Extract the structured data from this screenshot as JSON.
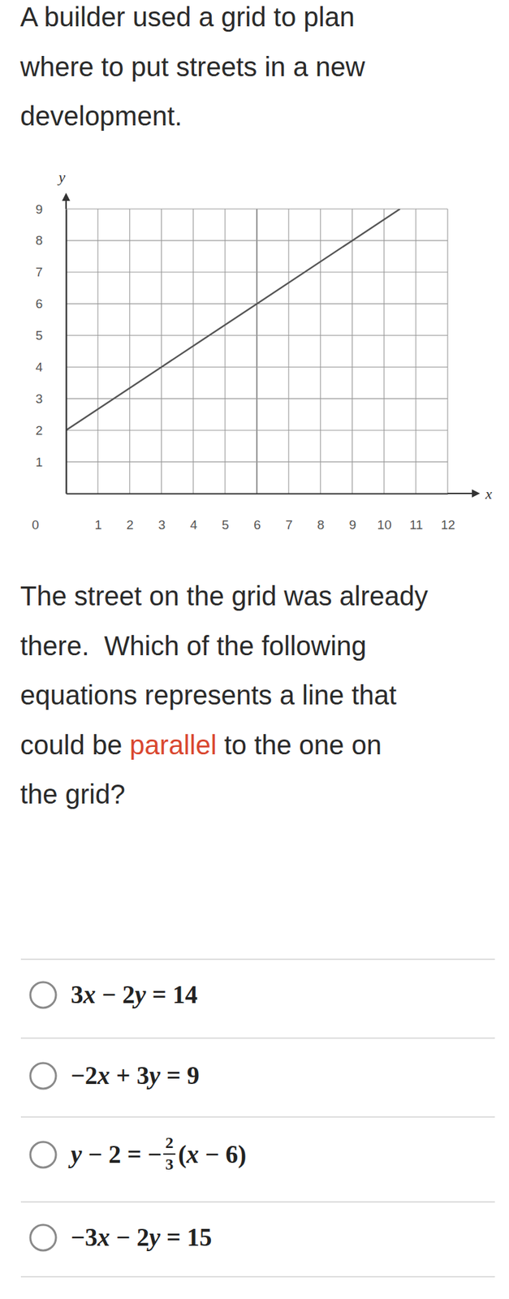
{
  "title_lines": [
    "A builder used a grid to plan",
    "where to put streets in a new",
    "development."
  ],
  "question_lines": [
    [
      {
        "text": "The street on the grid was already"
      }
    ],
    [
      {
        "text": "there.  Which of the following"
      }
    ],
    [
      {
        "text": "equations represents a line that"
      }
    ],
    [
      {
        "text": "could be "
      },
      {
        "text": "parallel",
        "color": "#d9472f"
      },
      {
        "text": " to the one on"
      }
    ],
    [
      {
        "text": "the grid?"
      }
    ]
  ],
  "options": [
    {
      "text": "3x − 2y = 14"
    },
    {
      "text": "−2x + 3y = 9"
    },
    {
      "parts": [
        "y − 2 = −",
        {
          "num": "2",
          "den": "3"
        },
        "(x − 6)"
      ]
    },
    {
      "text": "−3x − 2y = 15"
    }
  ],
  "chart_data": {
    "type": "line",
    "x_label": "x",
    "y_label": "y",
    "x": [
      0,
      3,
      6,
      9,
      10.5
    ],
    "values": [
      2,
      4,
      6,
      8,
      9
    ],
    "color": "#555555",
    "xlim": [
      0,
      12
    ],
    "ylim": [
      0,
      9
    ],
    "xticks": [
      0,
      1,
      2,
      3,
      4,
      5,
      6,
      7,
      8,
      9,
      10,
      11,
      12
    ],
    "yticks": [
      1,
      2,
      3,
      4,
      5,
      6,
      7,
      8,
      9
    ],
    "grid": true
  }
}
